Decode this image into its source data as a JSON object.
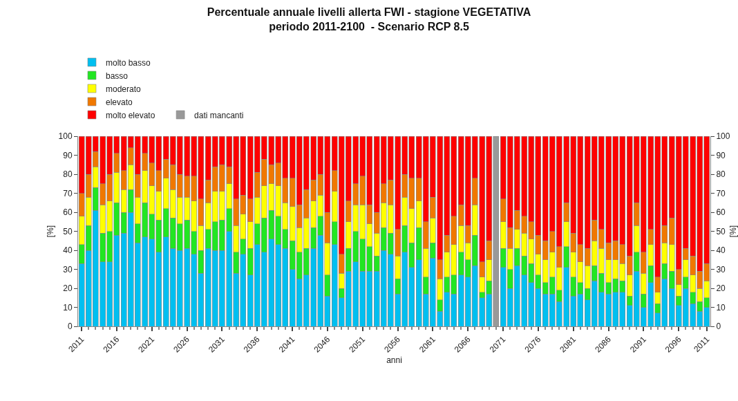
{
  "chart_data": {
    "type": "bar",
    "title": "Percentuale annuale livelli allerta FWI - stagione VEGETATIVA",
    "subtitle": "periodo 2011-2100  - Scenario RCP 8.5",
    "xlabel": "anni",
    "ylabel": "[%]",
    "y2label": "[%]",
    "categories": [
      "2011",
      null,
      null,
      null,
      null,
      "2016",
      null,
      null,
      null,
      null,
      "2021",
      null,
      null,
      null,
      null,
      "2026",
      null,
      null,
      null,
      null,
      "2031",
      null,
      null,
      null,
      null,
      "2036",
      null,
      null,
      null,
      null,
      "2041",
      null,
      null,
      null,
      null,
      "2046",
      null,
      null,
      null,
      null,
      "2051",
      null,
      null,
      null,
      null,
      "2056",
      null,
      null,
      null,
      null,
      "2061",
      null,
      null,
      null,
      null,
      "2066",
      null,
      null,
      null,
      null,
      "2071",
      null,
      null,
      null,
      null,
      "2076",
      null,
      null,
      null,
      null,
      "2081",
      null,
      null,
      null,
      null,
      "2086",
      null,
      null,
      null,
      null,
      "2091",
      null,
      null,
      null,
      null,
      "2096",
      null,
      null,
      null,
      "2011"
    ],
    "stacked": true,
    "ylim": [
      0,
      100
    ],
    "yticks": [
      0,
      10,
      20,
      30,
      40,
      50,
      60,
      70,
      80,
      90,
      100
    ],
    "y2lim": [
      0,
      100
    ],
    "y2ticks": [
      0,
      10,
      20,
      30,
      40,
      50,
      60,
      70,
      80,
      90,
      100
    ],
    "legend": "top left",
    "series": [
      {
        "name": "molto basso",
        "color": "#00bff0",
        "values": [
          33,
          40,
          61,
          34,
          34,
          48,
          49,
          60,
          44,
          47,
          46,
          39,
          47,
          41,
          40,
          41,
          38,
          28,
          41,
          40,
          40,
          50,
          28,
          38,
          27,
          43,
          39,
          46,
          43,
          41,
          30,
          25,
          27,
          41,
          48,
          16,
          43,
          15,
          29,
          34,
          29,
          29,
          29,
          40,
          38,
          17,
          39,
          31,
          35,
          17,
          36,
          8,
          18,
          17,
          27,
          26,
          32,
          15,
          17,
          null,
          31,
          20,
          32,
          27,
          23,
          20,
          17,
          17,
          13,
          31,
          16,
          17,
          14,
          24,
          18,
          17,
          18,
          18,
          11,
          29,
          10,
          23,
          7,
          25,
          20,
          11,
          20,
          12,
          8,
          10
        ]
      },
      {
        "name": "basso",
        "color": "#22e622",
        "values": [
          10,
          13,
          12,
          15,
          16,
          17,
          11,
          12,
          10,
          18,
          13,
          17,
          15,
          16,
          14,
          15,
          12,
          12,
          10,
          15,
          16,
          12,
          11,
          8,
          14,
          11,
          18,
          15,
          15,
          10,
          15,
          14,
          14,
          11,
          10,
          11,
          12,
          5,
          12,
          16,
          17,
          13,
          8,
          12,
          11,
          8,
          14,
          13,
          17,
          9,
          8,
          6,
          8,
          10,
          12,
          9,
          16,
          3,
          7,
          null,
          10,
          10,
          9,
          10,
          10,
          7,
          6,
          9,
          6,
          11,
          10,
          6,
          6,
          8,
          10,
          6,
          7,
          6,
          5,
          10,
          7,
          9,
          5,
          8,
          9,
          5,
          6,
          6,
          5,
          5
        ]
      },
      {
        "name": "moderato",
        "color": "#ffff00",
        "values": [
          15,
          15,
          11,
          15,
          16,
          16,
          12,
          13,
          14,
          17,
          15,
          15,
          16,
          15,
          14,
          12,
          16,
          13,
          14,
          16,
          15,
          13,
          14,
          13,
          14,
          14,
          17,
          14,
          16,
          14,
          18,
          13,
          16,
          14,
          11,
          17,
          16,
          8,
          14,
          14,
          18,
          12,
          12,
          13,
          15,
          12,
          15,
          18,
          14,
          15,
          13,
          11,
          13,
          16,
          14,
          9,
          16,
          8,
          11,
          null,
          14,
          11,
          10,
          12,
          13,
          11,
          12,
          13,
          12,
          13,
          13,
          11,
          12,
          13,
          13,
          12,
          10,
          9,
          11,
          14,
          11,
          11,
          6,
          11,
          14,
          6,
          9,
          9,
          7,
          9
        ]
      },
      {
        "name": "elevato",
        "color": "#f07800",
        "values": [
          12,
          12,
          8,
          11,
          14,
          10,
          10,
          9,
          12,
          9,
          12,
          11,
          10,
          13,
          12,
          11,
          13,
          14,
          12,
          13,
          14,
          9,
          14,
          10,
          12,
          13,
          14,
          10,
          12,
          13,
          15,
          12,
          15,
          11,
          11,
          16,
          11,
          10,
          11,
          11,
          15,
          10,
          11,
          10,
          13,
          14,
          12,
          16,
          12,
          14,
          11,
          10,
          9,
          15,
          11,
          9,
          14,
          8,
          10,
          null,
          12,
          11,
          10,
          9,
          9,
          10,
          10,
          11,
          11,
          10,
          10,
          9,
          9,
          11,
          10,
          9,
          10,
          10,
          10,
          12,
          11,
          8,
          8,
          9,
          14,
          8,
          6,
          10,
          9,
          9
        ]
      },
      {
        "name": "molto elevato",
        "color": "#ff0000",
        "values": [
          30,
          20,
          8,
          25,
          20,
          9,
          18,
          6,
          20,
          9,
          14,
          18,
          12,
          15,
          20,
          21,
          21,
          33,
          23,
          16,
          15,
          16,
          33,
          31,
          33,
          19,
          12,
          15,
          14,
          22,
          22,
          36,
          28,
          23,
          20,
          40,
          18,
          62,
          34,
          25,
          21,
          36,
          40,
          25,
          23,
          49,
          20,
          22,
          22,
          45,
          32,
          65,
          52,
          42,
          36,
          47,
          22,
          66,
          55,
          null,
          33,
          48,
          39,
          42,
          45,
          52,
          55,
          50,
          58,
          35,
          51,
          57,
          59,
          44,
          49,
          56,
          55,
          57,
          63,
          35,
          61,
          49,
          74,
          47,
          43,
          70,
          59,
          63,
          71,
          67
        ]
      },
      {
        "name": "dati mancanti",
        "color": "#999999",
        "values": [
          null,
          null,
          null,
          null,
          null,
          null,
          null,
          null,
          null,
          null,
          null,
          null,
          null,
          null,
          null,
          null,
          null,
          null,
          null,
          null,
          null,
          null,
          null,
          null,
          null,
          null,
          null,
          null,
          null,
          null,
          null,
          null,
          null,
          null,
          null,
          null,
          null,
          null,
          null,
          null,
          null,
          null,
          null,
          null,
          null,
          null,
          null,
          null,
          null,
          null,
          null,
          null,
          null,
          null,
          null,
          null,
          null,
          null,
          null,
          100,
          null,
          null,
          null,
          null,
          null,
          null,
          null,
          null,
          null,
          null,
          null,
          null,
          null,
          null,
          null,
          null,
          null,
          null,
          null,
          null,
          null,
          null,
          null,
          null,
          null,
          null,
          null,
          null,
          null,
          null
        ]
      }
    ]
  }
}
